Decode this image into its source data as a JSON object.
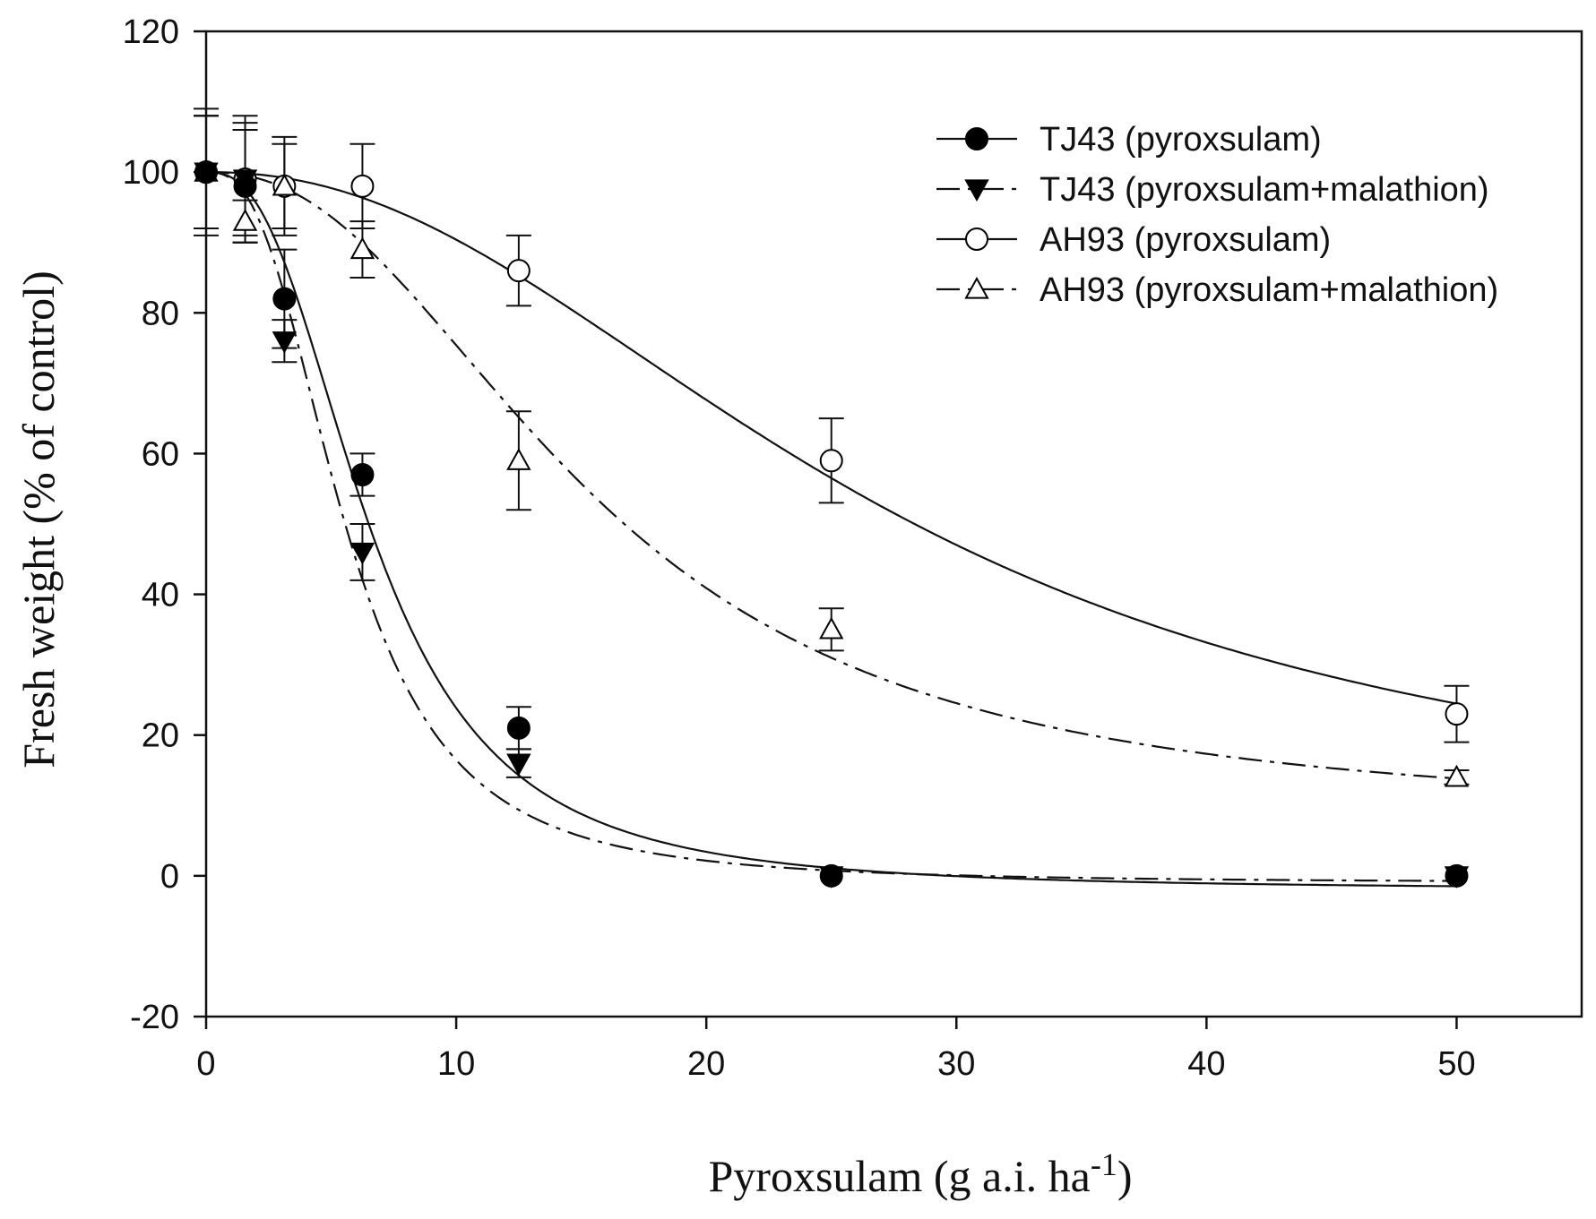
{
  "chart_data": {
    "type": "line",
    "title": "",
    "xlabel": "Pyroxsulam (g a.i. ha",
    "xlabel_superscript": "-1",
    "xlabel_close": ")",
    "ylabel": "Fresh weight (% of control)",
    "xlim": [
      0,
      55
    ],
    "ylim": [
      -20,
      120
    ],
    "xticks": [
      0,
      10,
      20,
      30,
      40,
      50
    ],
    "yticks": [
      -20,
      0,
      20,
      40,
      60,
      80,
      100,
      120
    ],
    "legend_position": "top-right",
    "x": [
      0,
      1.56,
      3.13,
      6.25,
      12.5,
      25,
      50
    ],
    "series": [
      {
        "name": "TJ43 (pyroxsulam)",
        "marker": "filled-circle",
        "line": "solid",
        "values": [
          100,
          98,
          82,
          57,
          21,
          0,
          0
        ],
        "errors": [
          8,
          8,
          7,
          3,
          3,
          0,
          0
        ],
        "fit": {
          "max": 100,
          "min": -2,
          "x50": 6.6,
          "b": 2.6
        }
      },
      {
        "name": "TJ43 (pyroxsulam+malathion)",
        "marker": "filled-triangle-down",
        "line": "dash-dot",
        "values": [
          100,
          99,
          76,
          46,
          16,
          0,
          0
        ],
        "errors": [
          9,
          9,
          3,
          4,
          2,
          0,
          0
        ],
        "fit": {
          "max": 100,
          "min": -1,
          "x50": 5.6,
          "b": 2.7
        }
      },
      {
        "name": "AH93 (pyroxsulam)",
        "marker": "open-circle",
        "line": "solid",
        "values": [
          100,
          99,
          98,
          98,
          86,
          59,
          23
        ],
        "errors": [
          8,
          8,
          7,
          6,
          5,
          6,
          4
        ],
        "fit": {
          "max": 100,
          "min": 5,
          "x50": 27,
          "b": 2.2
        }
      },
      {
        "name": "AH93 (pyroxsulam+malathion)",
        "marker": "open-triangle-up",
        "line": "dash-dot",
        "values": [
          100,
          93,
          98,
          89,
          59,
          35,
          14
        ],
        "errors": [
          8,
          3,
          6,
          4,
          7,
          3,
          1
        ],
        "fit": {
          "max": 100,
          "min": 8,
          "x50": 15.5,
          "b": 2.3
        }
      }
    ]
  }
}
